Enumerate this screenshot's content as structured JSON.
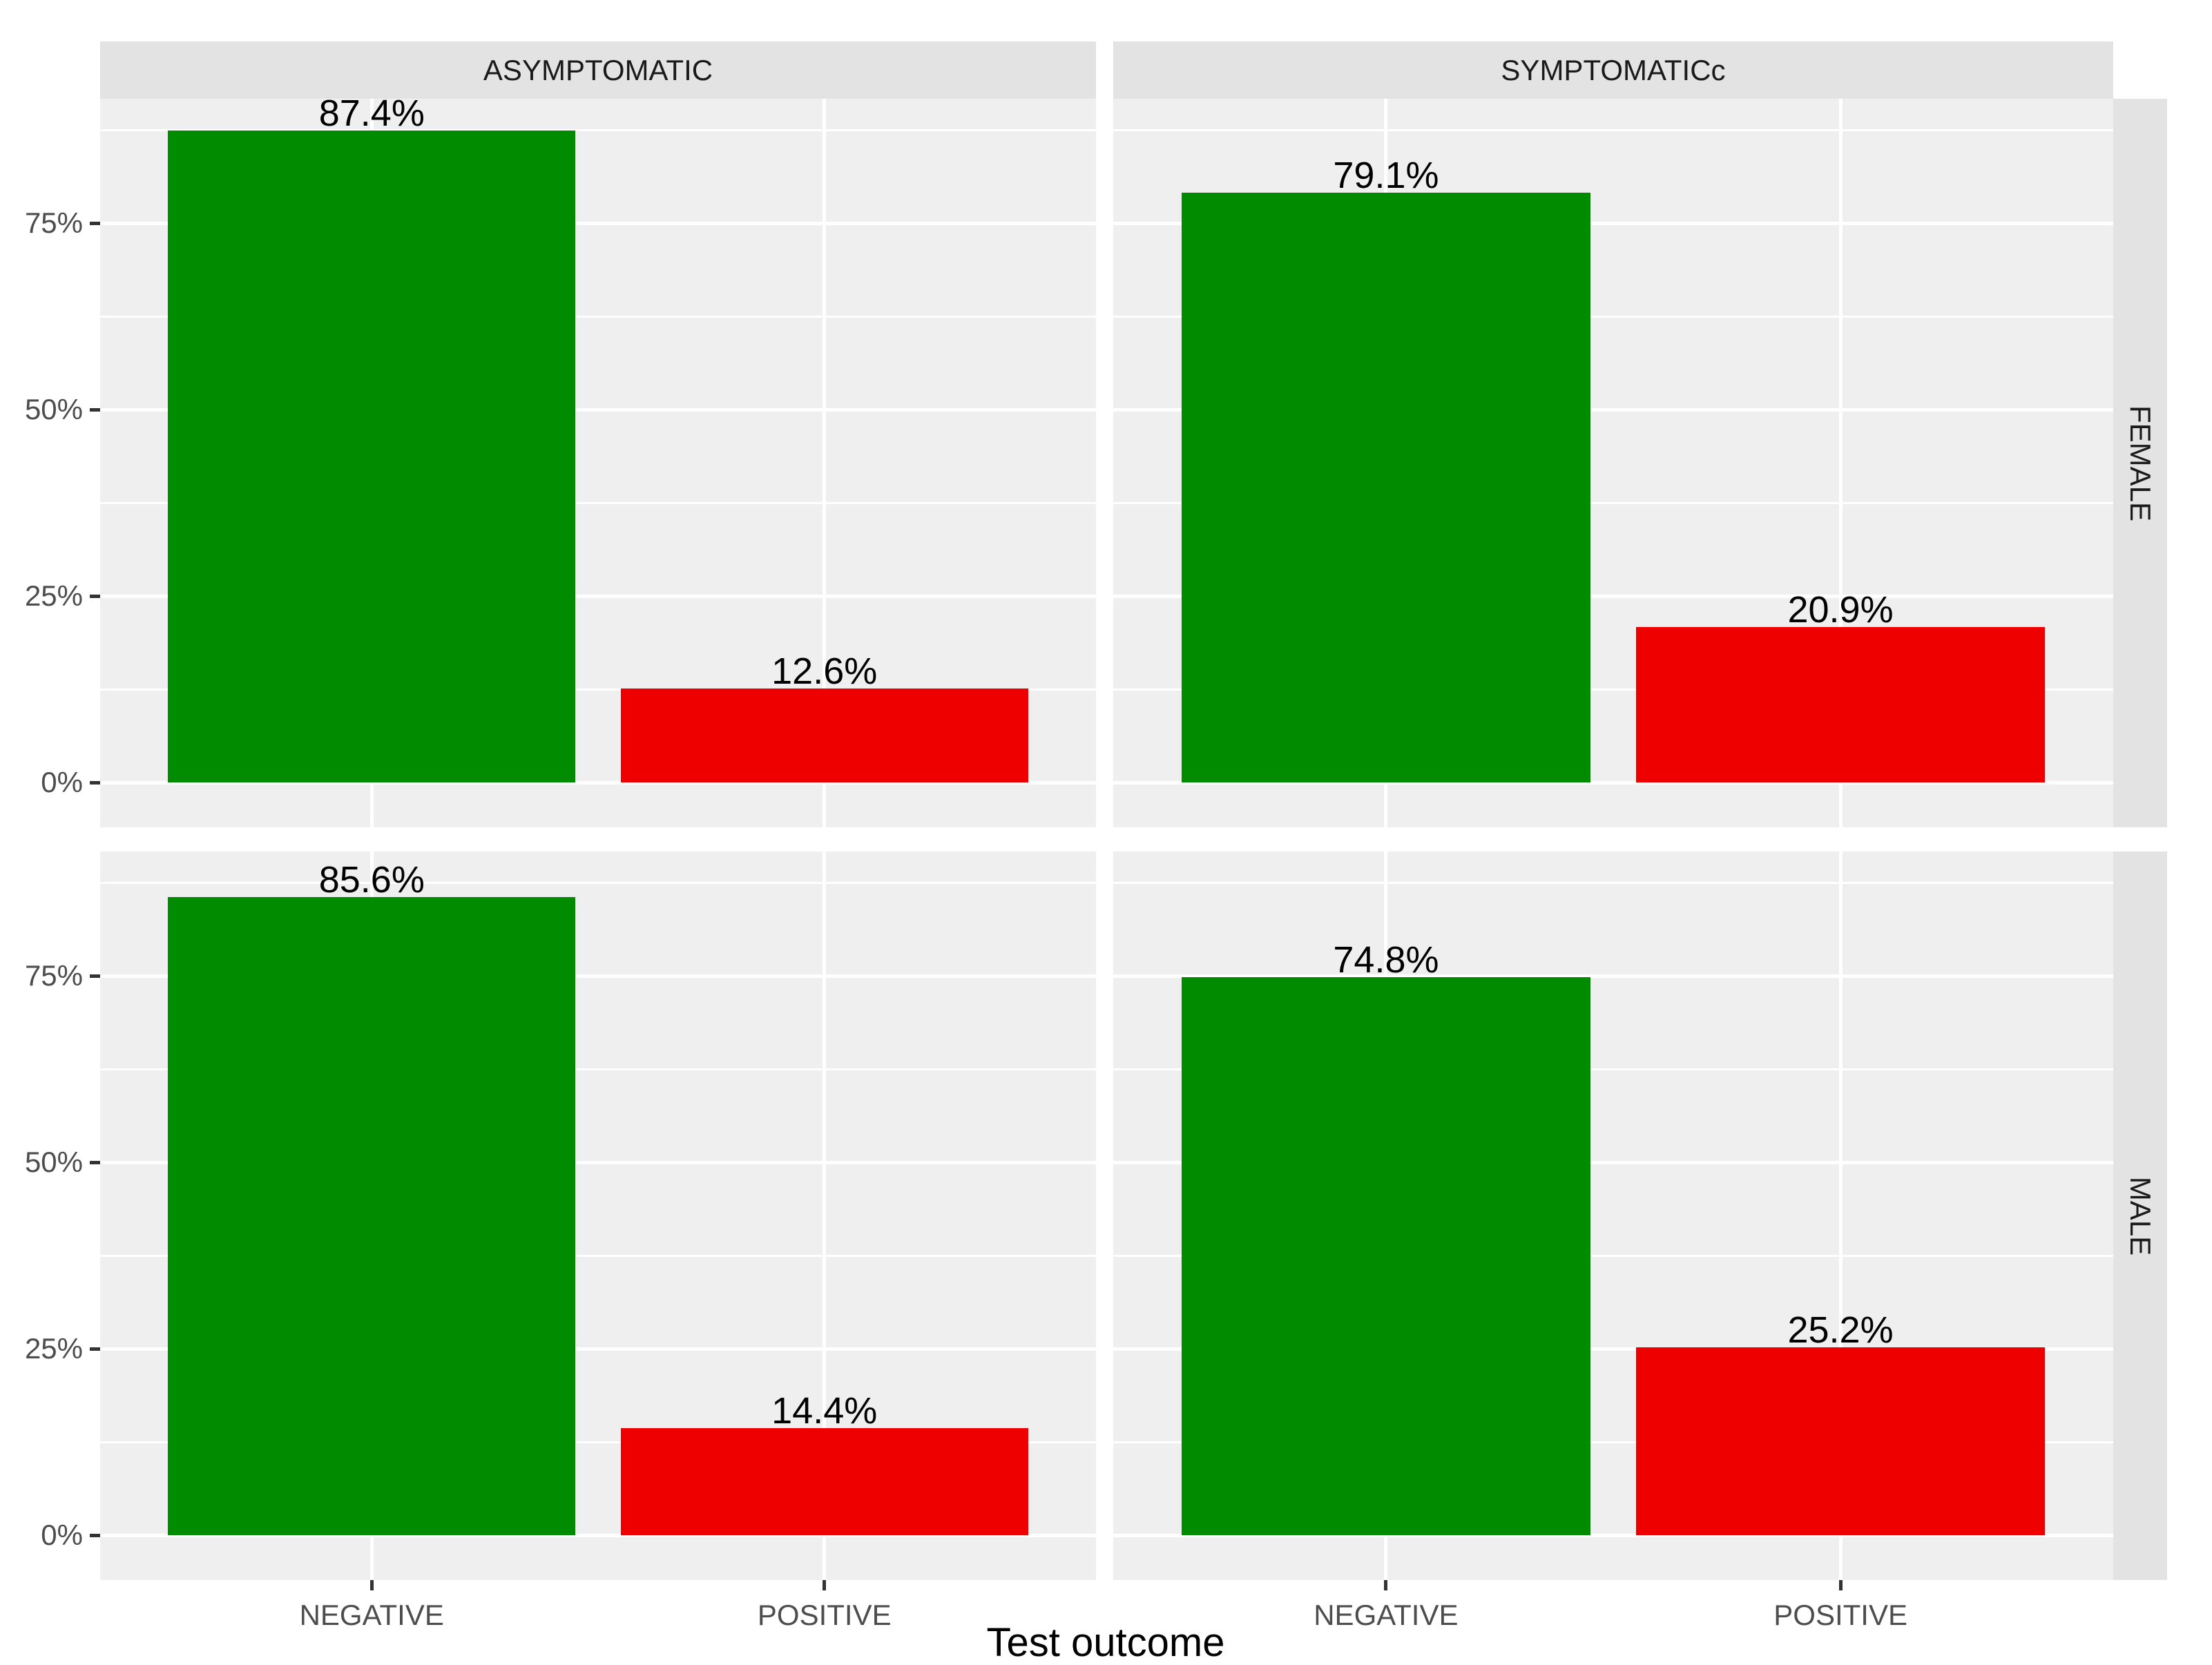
{
  "chart_data": {
    "type": "bar",
    "title": "",
    "xlabel": "Test outcome",
    "ylabel": "",
    "categories": [
      "NEGATIVE",
      "POSITIVE"
    ],
    "col_facets": [
      "ASYMPTOMATIC",
      "SYMPTOMATICc"
    ],
    "row_facets": [
      "FEMALE",
      "MALE"
    ],
    "y_tick_labels": [
      "0%",
      "25%",
      "50%",
      "75%"
    ],
    "y_tick_values": [
      0,
      25,
      50,
      75
    ],
    "y_minor_step": 12.5,
    "ylim": [
      -6,
      91.7
    ],
    "grid": true,
    "legend_position": "none",
    "series_colors": [
      "#008B00",
      "#EE0000"
    ],
    "panels": [
      {
        "row_facet": "FEMALE",
        "col_facet": "ASYMPTOMATIC",
        "values": [
          87.4,
          12.6
        ],
        "labels": [
          "87.4%",
          "12.6%"
        ]
      },
      {
        "row_facet": "FEMALE",
        "col_facet": "SYMPTOMATICc",
        "values": [
          79.1,
          20.9
        ],
        "labels": [
          "79.1%",
          "20.9%"
        ]
      },
      {
        "row_facet": "MALE",
        "col_facet": "ASYMPTOMATIC",
        "values": [
          85.6,
          14.4
        ],
        "labels": [
          "85.6%",
          "14.4%"
        ]
      },
      {
        "row_facet": "MALE",
        "col_facet": "SYMPTOMATICc",
        "values": [
          74.8,
          25.2
        ],
        "labels": [
          "74.8%",
          "25.2%"
        ]
      }
    ]
  },
  "theme": {
    "panel_bg": "#EFEFEF",
    "strip_bg": "#E3E3E3",
    "grid_color": "#FFFFFF",
    "axis_text_color": "#4D4D4D",
    "strip_text_color": "#1A1A1A",
    "tick_mark_color": "#333333",
    "value_label_color": "#000000",
    "figure_bg": "#FFFFFF"
  }
}
